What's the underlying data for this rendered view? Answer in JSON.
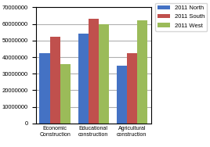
{
  "chart_data": {
    "type": "bar",
    "categories": [
      "Economic\nConstruction",
      "Educational\nconstruction",
      "Agricultural\nconstruction"
    ],
    "series": [
      {
        "name": "2011 North",
        "color": "#4472C4",
        "values": [
          42342545,
          54275435,
          34674332
        ]
      },
      {
        "name": "2011 South",
        "color": "#C0504D",
        "values": [
          52455234,
          63145534,
          42356234
        ]
      },
      {
        "name": "2011 West",
        "color": "#9BBB59",
        "values": [
          35882345,
          59878238,
          62344522
        ]
      }
    ],
    "ylim": [
      0,
      70000000
    ],
    "yticks": [
      0,
      10000000,
      20000000,
      30000000,
      40000000,
      50000000,
      60000000,
      70000000
    ],
    "grid": true,
    "legend": "upper right"
  }
}
